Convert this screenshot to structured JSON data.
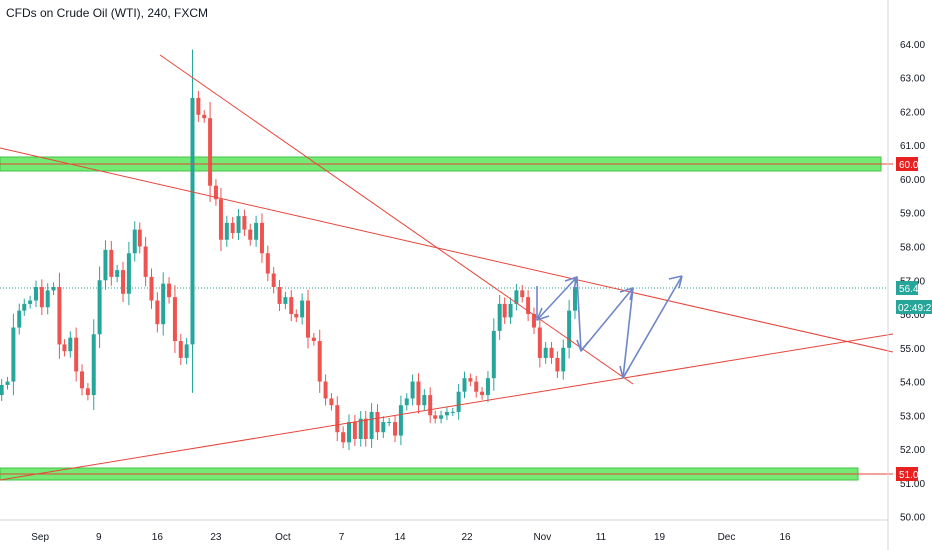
{
  "chart_data": {
    "type": "candlestick",
    "title": "CFDs on Crude Oil (WTI), 240, FXCM",
    "xlabel": "",
    "ylabel": "",
    "ylim": [
      49.9,
      65.3
    ],
    "y_ticks": [
      "50.00",
      "51.00",
      "52.00",
      "53.00",
      "54.00",
      "55.00",
      "56.00",
      "57.00",
      "58.00",
      "59.00",
      "60.00",
      "61.00",
      "62.00",
      "63.00",
      "64.00"
    ],
    "x_ticks": [
      "Sep",
      "9",
      "16",
      "23",
      "Oct",
      "7",
      "14",
      "22",
      "Nov",
      "11",
      "19",
      "Dec",
      "16"
    ],
    "x_tick_days": [
      0,
      7,
      14,
      21,
      29,
      36,
      43,
      51,
      60,
      67,
      74,
      82,
      89
    ],
    "xlim": [
      -4.8,
      101.3
    ],
    "last_day": 64,
    "ohlc_days": [
      -4.6,
      -3.9,
      -3.2,
      -2.5,
      -1.9,
      -1.2,
      -0.5,
      0.2,
      0.9,
      1.6,
      2.3,
      2.9,
      3.6,
      4.3,
      5.0,
      5.7,
      6.4,
      7.1,
      7.8,
      8.5,
      9.2,
      9.9,
      10.6,
      11.3,
      11.9,
      12.6,
      13.3,
      14.0,
      14.7,
      15.4,
      16.1,
      16.8,
      17.5,
      18.2,
      18.9,
      19.6,
      20.3,
      21.0,
      21.6,
      22.3,
      23.0,
      23.7,
      24.4,
      25.1,
      25.8,
      26.5,
      27.2,
      27.9,
      28.6,
      29.3,
      30.0,
      30.6,
      31.3,
      32.0,
      32.7,
      33.4,
      34.1,
      34.8,
      35.5,
      36.2,
      36.9,
      37.6,
      38.3,
      38.9,
      39.6,
      40.3,
      41.0,
      41.7,
      42.4,
      43.1,
      43.8,
      44.5,
      45.2,
      45.9,
      46.6,
      47.2,
      47.9,
      48.6,
      49.3,
      50.0,
      50.7,
      51.4,
      52.1,
      52.8,
      53.5,
      54.2,
      54.9,
      55.5,
      56.2,
      56.9,
      57.6,
      58.3,
      59.0,
      59.7,
      60.4,
      61.1,
      61.8,
      62.5,
      63.2,
      63.9
    ],
    "close": [
      53.9,
      54.0,
      55.6,
      56.1,
      56.3,
      56.4,
      56.8,
      56.2,
      56.7,
      56.8,
      55.1,
      54.9,
      55.3,
      54.3,
      53.8,
      53.6,
      55.4,
      57.0,
      57.9,
      57.1,
      57.3,
      56.6,
      57.8,
      58.5,
      58.0,
      57.1,
      56.4,
      55.7,
      56.9,
      56.5,
      55.2,
      54.7,
      55.1,
      62.4,
      61.9,
      61.8,
      59.8,
      59.4,
      58.2,
      58.7,
      58.4,
      58.9,
      58.5,
      58.2,
      58.7,
      57.8,
      57.2,
      56.8,
      56.3,
      56.5,
      56.0,
      55.9,
      56.4,
      55.3,
      55.2,
      54.0,
      53.5,
      53.3,
      52.5,
      52.2,
      52.8,
      52.3,
      52.9,
      52.3,
      53.1,
      52.5,
      52.8,
      52.8,
      52.4,
      53.3,
      53.5,
      54.0,
      53.3,
      53.6,
      53.0,
      52.9,
      53.0,
      53.1,
      53.1,
      53.7,
      54.1,
      54.0,
      53.7,
      53.6,
      54.1,
      55.5,
      56.3,
      55.9,
      56.3,
      56.7,
      56.5,
      56.0,
      55.6,
      54.7,
      55.0,
      54.7,
      54.3,
      55.0,
      56.1,
      56.8
    ]
  }
}
